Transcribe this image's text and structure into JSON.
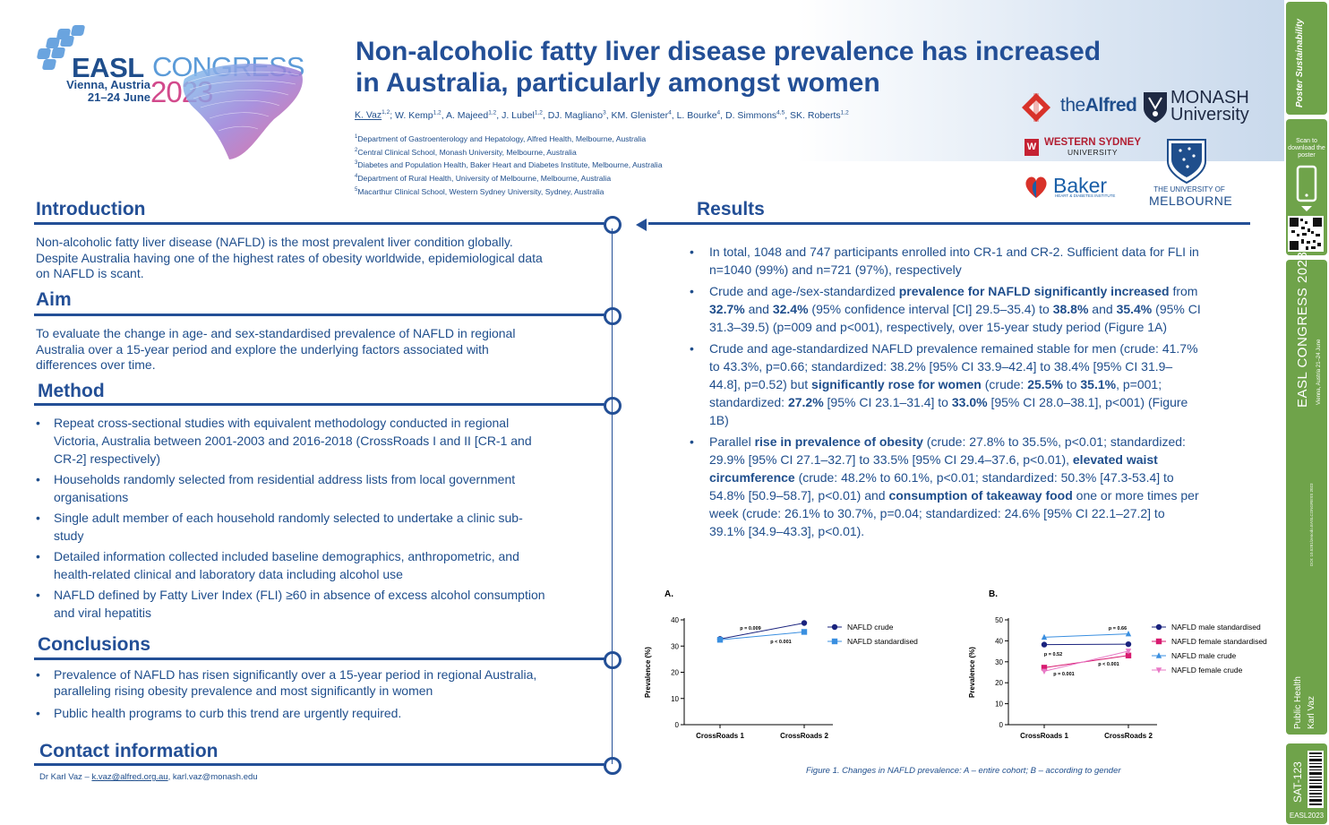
{
  "logo": {
    "easl": "EASL",
    "congress": "CONGRESS",
    "city": "Vienna, Austria",
    "dates": "21–24 June",
    "year": "2023"
  },
  "title_line1": "Non-alcoholic fatty liver disease prevalence has increased",
  "title_line2": "in Australia, particularly amongst women",
  "authors": {
    "first": "K. Vaz",
    "first_sup": "1,2",
    "rest": [
      {
        "name": "; W. Kemp",
        "sup": "1,2"
      },
      {
        "name": ", A. Majeed",
        "sup": "1,2"
      },
      {
        "name": ", J. Lubel",
        "sup": "1,2"
      },
      {
        "name": ", DJ. Magliano",
        "sup": "3"
      },
      {
        "name": ", KM. Glenister",
        "sup": "4"
      },
      {
        "name": ", L. Bourke",
        "sup": "4"
      },
      {
        "name": ", D. Simmons",
        "sup": "4,5"
      },
      {
        "name": ", SK. Roberts",
        "sup": "1,2"
      }
    ]
  },
  "affiliations": [
    {
      "sup": "1",
      "text": "Department of Gastroenterology and Hepatology, Alfred Health, Melbourne, Australia"
    },
    {
      "sup": "2",
      "text": "Central Clinical School, Monash University, Melbourne, Australia"
    },
    {
      "sup": "3",
      "text": "Diabetes and Population Health, Baker Heart and Diabetes Institute, Melbourne, Australia"
    },
    {
      "sup": "4",
      "text": "Department of Rural Health, University of Melbourne, Melbourne, Australia"
    },
    {
      "sup": "5",
      "text": "Macarthur Clinical School, Western Sydney University, Sydney, Australia"
    }
  ],
  "partners": {
    "alfred_the": "the",
    "alfred_name": "Alfred",
    "monash_1": "MONASH",
    "monash_2": "University",
    "wsu_mark": "W",
    "wsu_1": "WESTERN SYDNEY",
    "wsu_2": "UNIVERSITY",
    "baker": "Baker",
    "baker_sub": "HEART & DIABETES INSTITUTE",
    "melb_1": "THE UNIVERSITY OF",
    "melb_2": "MELBOURNE"
  },
  "sections": {
    "introduction": "Introduction",
    "aim": "Aim",
    "method": "Method",
    "conclusions": "Conclusions",
    "contact": "Contact information",
    "results": "Results"
  },
  "introduction_text": "Non-alcoholic fatty liver disease (NAFLD) is the most prevalent liver condition globally. Despite Australia having one of the highest rates of obesity worldwide, epidemiological data on NAFLD is scant.",
  "aim_text": "To evaluate the change in age- and sex-standardised prevalence of NAFLD in regional Australia over a 15-year period and explore the underlying factors associated with differences over time.",
  "method_items": [
    "Repeat cross-sectional studies with equivalent methodology conducted in regional Victoria, Australia between 2001-2003 and 2016-2018 (CrossRoads I and II [CR-1 and CR-2] respectively)",
    "Households randomly selected from residential address lists from local government organisations",
    "Single adult member of each household randomly selected to undertake a clinic sub-study",
    "Detailed information collected included baseline demographics, anthropometric, and health-related clinical and laboratory data including alcohol use",
    "NAFLD defined by Fatty Liver Index (FLI) ≥60 in absence of excess alcohol consumption and viral hepatitis"
  ],
  "conclusion_items": [
    "Prevalence of NAFLD has risen significantly over a 15-year period in regional Australia, paralleling rising obesity prevalence and most significantly in women",
    "Public health programs to curb this trend are urgently required."
  ],
  "contact": {
    "prefix": "Dr Karl Vaz – ",
    "email1": "k.vaz@alfred.org.au",
    "sep": ", ",
    "email2": "karl.vaz@monash.edu"
  },
  "results": {
    "r1": "In total, 1048 and 747 participants enrolled into CR-1 and CR-2. Sufficient data for FLI in n=1040 (99%) and n=721 (97%), respectively",
    "r2": [
      {
        "t": "Crude and age-/sex-standardized ",
        "b": false
      },
      {
        "t": "prevalence for NAFLD significantly increased",
        "b": true
      },
      {
        "t": " from ",
        "b": false
      },
      {
        "t": "32.7%",
        "b": true
      },
      {
        "t": " and ",
        "b": false
      },
      {
        "t": "32.4%",
        "b": true
      },
      {
        "t": " (95% confidence interval [CI] 29.5–35.4) to ",
        "b": false
      },
      {
        "t": "38.8%",
        "b": true
      },
      {
        "t": " and ",
        "b": false
      },
      {
        "t": "35.4%",
        "b": true
      },
      {
        "t": " (95% CI 31.3–39.5) (p=009 and p<001), respectively, over 15-year study period (Figure 1A)",
        "b": false
      }
    ],
    "r3": [
      {
        "t": "Crude and age-standardized NAFLD prevalence remained stable for men (crude: 41.7% to 43.3%, p=0.66; standardized: 38.2% [95% CI 33.9–42.4] to 38.4% [95% CI 31.9–44.8], p=0.52) but ",
        "b": false
      },
      {
        "t": "significantly rose for women",
        "b": true
      },
      {
        "t": " (crude: ",
        "b": false
      },
      {
        "t": "25.5%",
        "b": true
      },
      {
        "t": " to ",
        "b": false
      },
      {
        "t": "35.1%",
        "b": true
      },
      {
        "t": ", p=001; standardized: ",
        "b": false
      },
      {
        "t": "27.2%",
        "b": true
      },
      {
        "t": " [95% CI 23.1–31.4] to ",
        "b": false
      },
      {
        "t": "33.0%",
        "b": true
      },
      {
        "t": " [95% CI 28.0–38.1], p<001) (Figure 1B)",
        "b": false
      }
    ],
    "r4": [
      {
        "t": "Parallel ",
        "b": false
      },
      {
        "t": "rise in prevalence of obesity",
        "b": true
      },
      {
        "t": " (crude: 27.8% to 35.5%, p<0.01; standardized: 29.9% [95% CI 27.1–32.7] to 33.5% [95% CI 29.4–37.6, p<0.01), ",
        "b": false
      },
      {
        "t": "elevated waist circumference",
        "b": true
      },
      {
        "t": " (crude: 48.2% to 60.1%, p<0.01; standardized: 50.3% [47.3-53.4] to 54.8% [50.9–58.7], p<0.01) and ",
        "b": false
      },
      {
        "t": "consumption of takeaway food",
        "b": true
      },
      {
        "t": " one or more times per week (crude: 26.1% to 30.7%, p=0.04; standardized: 24.6% [95% CI 22.1–27.2] to 39.1% [34.9–43.3], p<0.01).",
        "b": false
      }
    ]
  },
  "figure_caption": "Figure 1. Changes in NAFLD prevalence: A – entire cohort; B – according to gender",
  "chart_data": [
    {
      "type": "line",
      "panel": "A.",
      "categories": [
        "CrossRoads 1",
        "CrossRoads 2"
      ],
      "ylabel": "Prevalence (%)",
      "ylim": [
        0,
        40
      ],
      "yticks": [
        0,
        10,
        20,
        30,
        40
      ],
      "series": [
        {
          "name": "NAFLD crude",
          "values": [
            32.7,
            38.8
          ],
          "color": "#1a237e",
          "marker": "circle"
        },
        {
          "name": "NAFLD standardised",
          "values": [
            32.4,
            35.4
          ],
          "color": "#3a8fe0",
          "marker": "square"
        }
      ],
      "annotations": [
        "p = 0.009",
        "p < 0.001"
      ]
    },
    {
      "type": "line",
      "panel": "B.",
      "categories": [
        "CrossRoads 1",
        "CrossRoads 2"
      ],
      "ylabel": "Prevalence (%)",
      "ylim": [
        0,
        50
      ],
      "yticks": [
        0,
        10,
        20,
        30,
        40,
        50
      ],
      "series": [
        {
          "name": "NAFLD male standardised",
          "values": [
            38.2,
            38.4
          ],
          "color": "#1a237e",
          "marker": "circle"
        },
        {
          "name": "NAFLD female standardised",
          "values": [
            27.2,
            33.0
          ],
          "color": "#d81b70",
          "marker": "square"
        },
        {
          "name": "NAFLD male crude",
          "values": [
            41.7,
            43.3
          ],
          "color": "#3a8fe0",
          "marker": "triangle-up"
        },
        {
          "name": "NAFLD female crude",
          "values": [
            25.5,
            35.1
          ],
          "color": "#e879c6",
          "marker": "triangle-down"
        }
      ],
      "annotations": [
        "p = 0.66",
        "p = 0.52",
        "p = 0.001",
        "p < 0.001"
      ]
    }
  ],
  "sidebar": {
    "poster_brand": "Poster Sustainability",
    "scan_text": "Scan to download the poster",
    "congress_vertical": "EASL CONGRESS 2023",
    "city_vertical": "Vienna, Austria 21–24 June",
    "doi": "DOI: 10.5281/zenodo.EASLCONGRESS 2023",
    "topic": "Public Health",
    "author": "Karl Vaz",
    "code": "SAT-123",
    "brand": "EASL2023"
  }
}
